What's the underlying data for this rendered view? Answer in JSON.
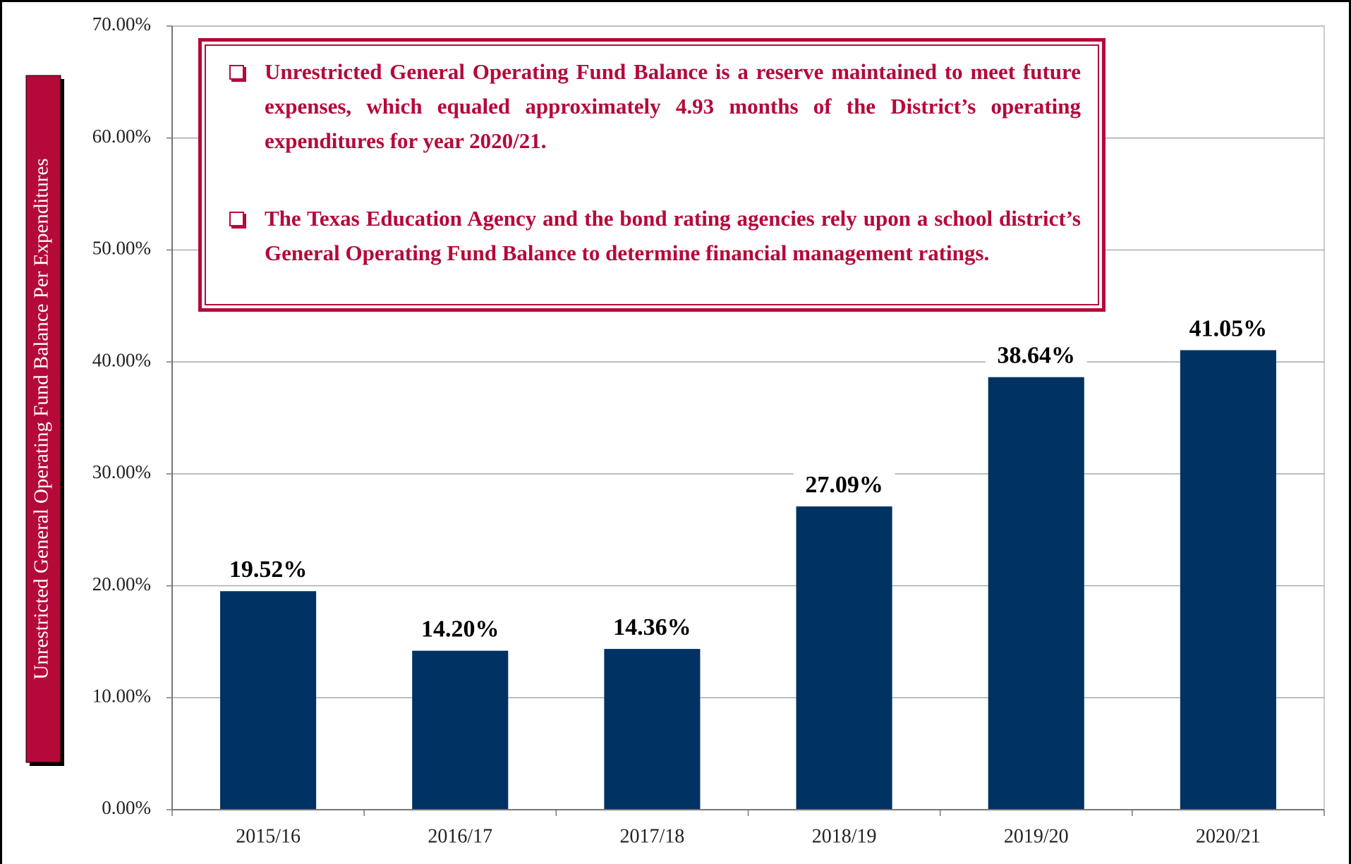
{
  "chart_data": {
    "type": "bar",
    "y_axis_label": "Unrestricted General Operating Fund Balance Per Expenditures",
    "annotations": [
      "Unrestricted General Operating Fund Balance is a reserve maintained to meet future expenses, which equaled approximately 4.93 months of the District’s operating expenditures for year 2020/21.",
      "The Texas Education Agency and the bond rating agencies rely upon a school district’s General Operating Fund Balance to determine financial management ratings."
    ],
    "categories": [
      "2015/16",
      "2016/17",
      "2017/18",
      "2018/19",
      "2019/20",
      "2020/21"
    ],
    "values": [
      19.52,
      14.2,
      14.36,
      27.09,
      38.64,
      41.05
    ],
    "value_labels": [
      "19.52%",
      "14.20%",
      "14.36%",
      "27.09%",
      "38.64%",
      "41.05%"
    ],
    "color": "#003263",
    "ylim": [
      0,
      70
    ],
    "yticks": [
      {
        "value": 0,
        "label": "0.00%"
      },
      {
        "value": 10,
        "label": "10.00%"
      },
      {
        "value": 20,
        "label": "20.00%"
      },
      {
        "value": 30,
        "label": "30.00%"
      },
      {
        "value": 40,
        "label": "40.00%"
      },
      {
        "value": 50,
        "label": "50.00%"
      },
      {
        "value": 60,
        "label": "60.00%"
      },
      {
        "value": 70,
        "label": "70.00%"
      }
    ],
    "grid": true
  }
}
